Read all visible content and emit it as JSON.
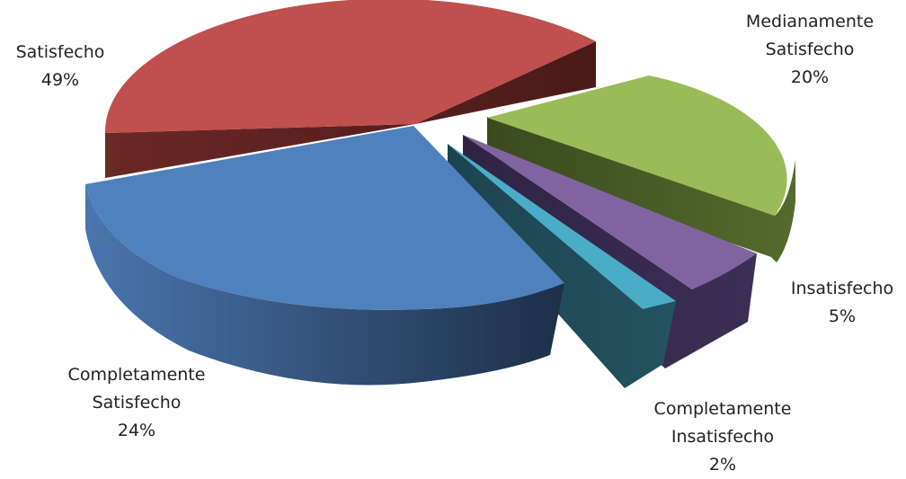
{
  "chart_data": {
    "type": "pie",
    "style": "3d-exploded",
    "slices": [
      {
        "label_lines": [
          "Satisfecho",
          "49%"
        ],
        "value": 49,
        "color": "#c0504d",
        "side_color": "#5a2220"
      },
      {
        "label_lines": [
          "Medianamente",
          "Satisfecho",
          "20%"
        ],
        "value": 20,
        "color": "#9bbb59",
        "side_color": "#3e4d21"
      },
      {
        "label_lines": [
          "Insatisfecho",
          "5%"
        ],
        "value": 5,
        "color": "#8064a2",
        "side_color": "#33294a"
      },
      {
        "label_lines": [
          "Completamente",
          "Insatisfecho",
          "2%"
        ],
        "value": 2,
        "color": "#4bacc6",
        "side_color": "#1f4a55"
      },
      {
        "label_lines": [
          "Completamente",
          "Satisfecho",
          "24%"
        ],
        "value": 24,
        "color": "#4f81bd",
        "side_color": "#263d5c"
      }
    ]
  }
}
